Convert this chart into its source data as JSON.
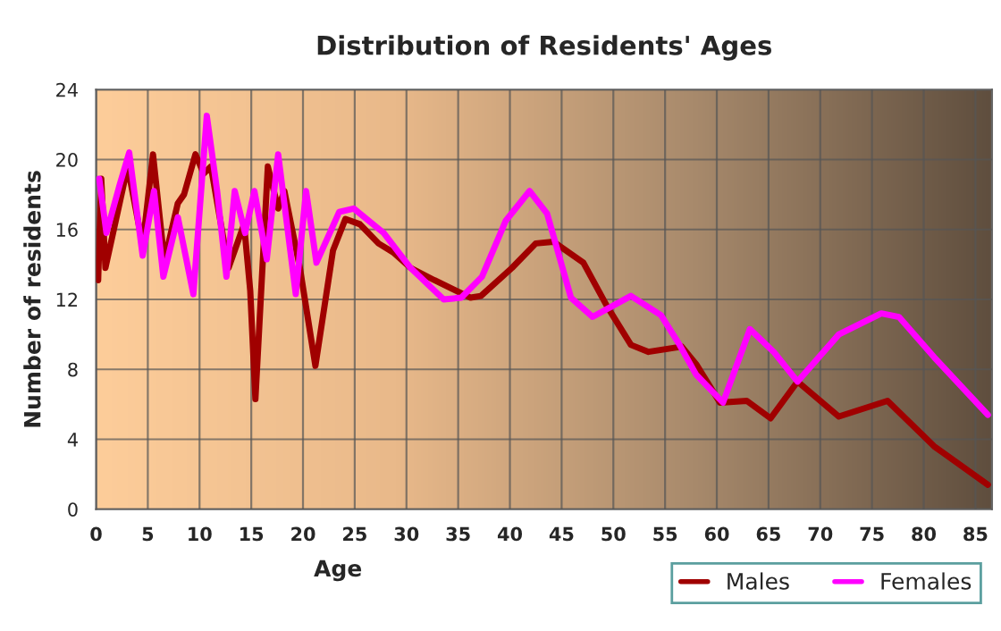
{
  "chart_data": {
    "type": "line",
    "title": "Distribution of Residents' Ages",
    "xlabel": "Age",
    "ylabel": "Number of residents",
    "series": [
      {
        "name": "Males",
        "color": "#a00000",
        "x": [
          0.2,
          0.5,
          0.9,
          3.05,
          4.5,
          5.5,
          6.6,
          7.9,
          8.5,
          9.6,
          10.4,
          11.1,
          12.8,
          14.3,
          14.9,
          15.4,
          16.6,
          17.6,
          18.2,
          19.7,
          21.2,
          22.9,
          24.1,
          25.5,
          27.3,
          28.7,
          30.4,
          32.7,
          36.2,
          37.2,
          40.2,
          42.5,
          44.2,
          47.1,
          49.4,
          51.7,
          53.4,
          56.6,
          58,
          60.3,
          62.9,
          65.2,
          67.8,
          71.8,
          76.5,
          81,
          86.2
        ],
        "values": [
          13.1,
          18.9,
          13.8,
          19.6,
          15.1,
          20.3,
          14.2,
          17.5,
          18.0,
          20.3,
          19.2,
          19.6,
          13.8,
          16.3,
          12.5,
          6.3,
          19.6,
          17.2,
          18.2,
          13.8,
          8.2,
          14.8,
          16.6,
          16.3,
          15.2,
          14.7,
          13.8,
          13.1,
          12.1,
          12.2,
          13.8,
          15.2,
          15.3,
          14.1,
          11.6,
          9.4,
          9.0,
          9.3,
          8.3,
          6.1,
          6.2,
          5.2,
          7.3,
          5.3,
          6.2,
          3.6,
          1.4
        ]
      },
      {
        "name": "Females",
        "color": "#ff00ff",
        "x": [
          0.3,
          1.0,
          2.3,
          3.2,
          4.5,
          5.6,
          6.5,
          7.9,
          9.4,
          10.7,
          11.7,
          12.6,
          13.4,
          14.4,
          15.3,
          16.5,
          17.6,
          19.3,
          20.3,
          21.3,
          23.5,
          24.9,
          27.8,
          30.4,
          33.6,
          35.3,
          37.3,
          39.6,
          41.9,
          43.6,
          45.9,
          48,
          51.7,
          54.6,
          56.3,
          58,
          60.6,
          63.2,
          65.5,
          67.8,
          71.8,
          75.9,
          77.6,
          81,
          86.2
        ],
        "values": [
          18.9,
          15.8,
          18.6,
          20.4,
          14.5,
          18.2,
          13.3,
          16.7,
          12.3,
          22.5,
          18.2,
          13.3,
          18.2,
          15.8,
          18.2,
          14.3,
          20.3,
          12.3,
          18.2,
          14.1,
          17.0,
          17.2,
          15.8,
          13.8,
          12.0,
          12.1,
          13.3,
          16.5,
          18.2,
          16.9,
          12.1,
          11.0,
          12.2,
          11.1,
          9.5,
          7.7,
          6.1,
          10.3,
          9.0,
          7.3,
          10.0,
          11.2,
          11.0,
          8.7,
          5.4
        ]
      }
    ],
    "xlim": [
      0,
      86.6
    ],
    "ylim": [
      0,
      24
    ],
    "xticks": [
      0,
      5,
      10,
      15,
      20,
      25,
      30,
      35,
      40,
      45,
      50,
      55,
      60,
      65,
      70,
      75,
      80,
      85
    ],
    "yticks": [
      0,
      4,
      8,
      12,
      16,
      20,
      24
    ],
    "grid": true,
    "legend": "bottom right",
    "marker": "none",
    "line_style": "solid"
  }
}
